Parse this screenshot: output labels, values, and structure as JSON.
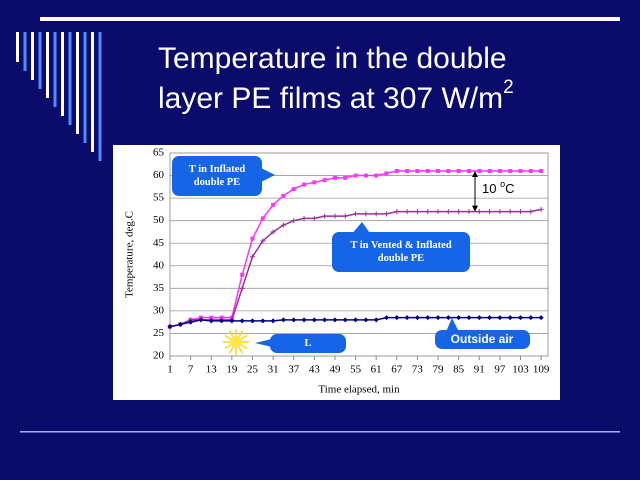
{
  "slide": {
    "title": [
      "Temperature in the double",
      "layer PE films at 307 W/m",
      "2"
    ]
  },
  "chart_data": {
    "type": "line",
    "x_label": "Time elapsed, min",
    "y_label": "Temperature, deg.C",
    "x": [
      1,
      4,
      7,
      10,
      13,
      16,
      19,
      22,
      25,
      28,
      31,
      34,
      37,
      40,
      43,
      46,
      49,
      52,
      55,
      58,
      61,
      64,
      67,
      70,
      73,
      76,
      79,
      82,
      85,
      88,
      91,
      94,
      97,
      100,
      103,
      106,
      109
    ],
    "series": [
      {
        "name": "T in Inflated double PE",
        "color": "#ff33ff",
        "marker": "square",
        "values": [
          26.5,
          27,
          28,
          28.5,
          28.5,
          28.5,
          28.5,
          38,
          46,
          50.5,
          53.5,
          55.5,
          57,
          58,
          58.5,
          59,
          59.5,
          59.5,
          60,
          60,
          60,
          60.5,
          61,
          61,
          61,
          61,
          61,
          61,
          61,
          61,
          61,
          61,
          61,
          61,
          61,
          61,
          61
        ]
      },
      {
        "name": "T in Vented & Inflated double PE",
        "color": "#993399",
        "marker": "plus",
        "values": [
          26.5,
          27,
          28,
          28,
          28,
          28,
          28,
          35,
          42,
          45.5,
          47.5,
          49,
          50,
          50.5,
          50.5,
          51,
          51,
          51,
          51.5,
          51.5,
          51.5,
          51.5,
          52,
          52,
          52,
          52,
          52,
          52,
          52,
          52,
          52,
          52,
          52,
          52,
          52,
          52,
          52.5
        ]
      },
      {
        "name": "Outside air",
        "color": "#000080",
        "marker": "diamond",
        "values": [
          26.5,
          27,
          27.5,
          28,
          27.8,
          27.8,
          27.8,
          27.8,
          27.8,
          27.8,
          27.8,
          28,
          28,
          28,
          28,
          28,
          28,
          28,
          28,
          28,
          28,
          28.5,
          28.5,
          28.5,
          28.5,
          28.5,
          28.5,
          28.5,
          28.5,
          28.5,
          28.5,
          28.5,
          28.5,
          28.5,
          28.5,
          28.5,
          28.5
        ]
      }
    ],
    "xlim": [
      1,
      111
    ],
    "ylim": [
      20,
      65
    ],
    "xticks": [
      1,
      7,
      13,
      19,
      25,
      31,
      37,
      43,
      49,
      55,
      61,
      67,
      73,
      79,
      85,
      91,
      97,
      103,
      109
    ],
    "yticks": [
      20,
      25,
      30,
      35,
      40,
      45,
      50,
      55,
      60,
      65
    ],
    "grid": true,
    "annotations": {
      "inflated": [
        "T in Inflated",
        "double PE"
      ],
      "vented": [
        "T in Vented & Inflated",
        "double PE"
      ],
      "outside": "Outside air",
      "light": "Light On",
      "difference": [
        "10 ",
        "o",
        "C"
      ]
    }
  }
}
